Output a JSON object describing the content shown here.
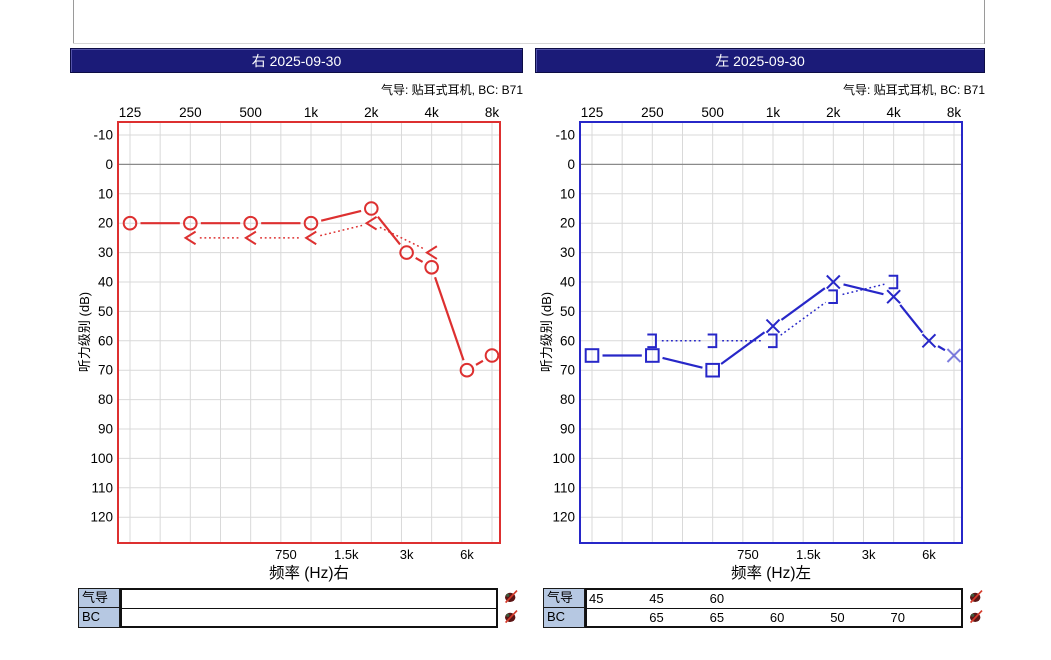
{
  "panels": [
    {
      "id": "right-ear",
      "header": "右 2025-09-30",
      "header_bg": "#1b1b78",
      "subtitle": "气导: 贴耳式耳机, BC: B71",
      "accent": "#dd3030"
    },
    {
      "id": "left-ear",
      "header": "左 2025-09-30",
      "header_bg": "#1b1b78",
      "subtitle": "气导: 贴耳式耳机, BC: B71",
      "accent": "#2727c8"
    }
  ],
  "chart_data": [
    {
      "type": "line",
      "title": "右 2025-09-30",
      "ear": "right",
      "color": "#dd3030",
      "xlabel": "频率 (Hz)右",
      "ylabel": "听力级别 (dB)",
      "x_ticks_top": [
        "125",
        "250",
        "500",
        "1k",
        "2k",
        "4k",
        "8k"
      ],
      "x_ticks_top_hz": [
        125,
        250,
        500,
        1000,
        2000,
        4000,
        8000
      ],
      "x_ticks_bottom": [
        "750",
        "1.5k",
        "3k",
        "6k"
      ],
      "x_ticks_bottom_hz": [
        750,
        1500,
        3000,
        6000
      ],
      "ylim": [
        -10,
        120
      ],
      "y_tick_step": 10,
      "grid": true,
      "legend": "none",
      "series": [
        {
          "name": "气导 air conduction",
          "symbol": "circle",
          "line": "solid",
          "points": [
            {
              "f": 125,
              "db": 20
            },
            {
              "f": 250,
              "db": 20
            },
            {
              "f": 500,
              "db": 20
            },
            {
              "f": 1000,
              "db": 20
            },
            {
              "f": 2000,
              "db": 15
            },
            {
              "f": 3000,
              "db": 30
            },
            {
              "f": 4000,
              "db": 35
            },
            {
              "f": 6000,
              "db": 70
            },
            {
              "f": 8000,
              "db": 65
            }
          ]
        },
        {
          "name": "BC bone conduction",
          "symbol": "angle-left",
          "line": "dotted",
          "points": [
            {
              "f": 250,
              "db": 25
            },
            {
              "f": 500,
              "db": 25
            },
            {
              "f": 1000,
              "db": 25
            },
            {
              "f": 2000,
              "db": 20
            },
            {
              "f": 4000,
              "db": 30
            }
          ]
        }
      ]
    },
    {
      "type": "line",
      "title": "左 2025-09-30",
      "ear": "left",
      "color": "#2727c8",
      "xlabel": "频率 (Hz)左",
      "ylabel": "听力级别 (dB)",
      "x_ticks_top": [
        "125",
        "250",
        "500",
        "1k",
        "2k",
        "4k",
        "8k"
      ],
      "x_ticks_top_hz": [
        125,
        250,
        500,
        1000,
        2000,
        4000,
        8000
      ],
      "x_ticks_bottom": [
        "750",
        "1.5k",
        "3k",
        "6k"
      ],
      "x_ticks_bottom_hz": [
        750,
        1500,
        3000,
        6000
      ],
      "ylim": [
        -10,
        120
      ],
      "y_tick_step": 10,
      "grid": true,
      "legend": "none",
      "series": [
        {
          "name": "气导 air conduction",
          "symbol": "x",
          "line": "solid",
          "points": [
            {
              "f": 125,
              "db": 65,
              "symbol": "square"
            },
            {
              "f": 250,
              "db": 65,
              "symbol": "square"
            },
            {
              "f": 500,
              "db": 70,
              "symbol": "square"
            },
            {
              "f": 1000,
              "db": 55
            },
            {
              "f": 2000,
              "db": 40
            },
            {
              "f": 4000,
              "db": 45
            },
            {
              "f": 6000,
              "db": 60
            },
            {
              "f": 8000,
              "db": 65,
              "light": true
            }
          ]
        },
        {
          "name": "BC bone conduction",
          "symbol": "bracket-right",
          "line": "dotted",
          "points": [
            {
              "f": 250,
              "db": 60
            },
            {
              "f": 500,
              "db": 60
            },
            {
              "f": 1000,
              "db": 60
            },
            {
              "f": 2000,
              "db": 45
            },
            {
              "f": 4000,
              "db": 40
            }
          ]
        }
      ]
    }
  ],
  "tables": [
    {
      "panel": "right-ear",
      "rows": [
        {
          "label": "气导",
          "values": [
            "",
            "",
            "",
            "",
            "",
            "",
            "",
            ""
          ]
        },
        {
          "label": "BC",
          "values": [
            "",
            "",
            "",
            "",
            "",
            "",
            "",
            ""
          ]
        }
      ]
    },
    {
      "panel": "left-ear",
      "rows": [
        {
          "label": "气导",
          "values": [
            "45",
            "45",
            "60",
            "",
            "",
            "",
            "",
            ""
          ]
        },
        {
          "label": "BC",
          "values": [
            "",
            "65",
            "65",
            "60",
            "50",
            "70",
            "",
            ""
          ]
        }
      ]
    }
  ]
}
